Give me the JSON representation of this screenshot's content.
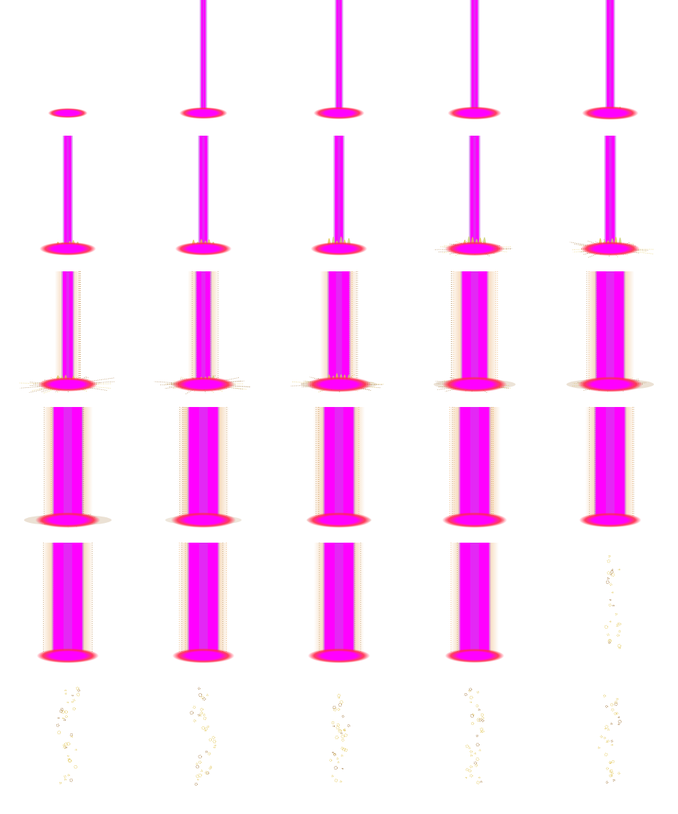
{
  "sprite_sheet": {
    "columns": 5,
    "rows": 6,
    "frame_count": 30,
    "colors": {
      "beam_core": "#ff00ff",
      "beam_edge": "#c058e8",
      "pool_center": "#ff00ff",
      "pool_rim": "#ff2a4a",
      "sparks_gold": "#e0c24a",
      "sparks_brown": "#9a6a2a",
      "halo_orange": "#e08a2a",
      "halo_green": "#c8d070",
      "background": "#ffffff"
    },
    "frames": [
      {
        "id": 1,
        "beam": 0,
        "aura": 0,
        "flare": 0,
        "spikes": 0,
        "dust": 0,
        "pool": 0.55,
        "bubbles": 0
      },
      {
        "id": 2,
        "beam": 0.1,
        "aura": 0,
        "flare": 0,
        "spikes": 0,
        "dust": 0,
        "pool": 0.7,
        "bubbles": 0
      },
      {
        "id": 3,
        "beam": 0.12,
        "aura": 0,
        "flare": 0,
        "spikes": 0,
        "dust": 0,
        "pool": 0.75,
        "bubbles": 0
      },
      {
        "id": 4,
        "beam": 0.14,
        "aura": 0,
        "flare": 0.05,
        "spikes": 0,
        "dust": 0,
        "pool": 0.8,
        "bubbles": 0
      },
      {
        "id": 5,
        "beam": 0.15,
        "aura": 0,
        "flare": 0.4,
        "spikes": 0,
        "dust": 0,
        "pool": 0.85,
        "bubbles": 0
      },
      {
        "id": 6,
        "beam": 0.16,
        "aura": 0,
        "flare": 0.55,
        "spikes": 0,
        "dust": 0,
        "pool": 0.85,
        "bubbles": 0
      },
      {
        "id": 7,
        "beam": 0.17,
        "aura": 0,
        "flare": 0.7,
        "spikes": 0,
        "dust": 0,
        "pool": 0.85,
        "bubbles": 0
      },
      {
        "id": 8,
        "beam": 0.18,
        "aura": 0,
        "flare": 0.8,
        "spikes": 0,
        "dust": 0,
        "pool": 0.85,
        "bubbles": 0
      },
      {
        "id": 9,
        "beam": 0.19,
        "aura": 0,
        "flare": 0.8,
        "spikes": 0.75,
        "dust": 0,
        "pool": 0.9,
        "bubbles": 0
      },
      {
        "id": 10,
        "beam": 0.2,
        "aura": 0,
        "flare": 0.8,
        "spikes": 0.95,
        "dust": 0,
        "pool": 0.9,
        "bubbles": 0
      },
      {
        "id": 11,
        "beam": 0.22,
        "aura": 0.15,
        "flare": 0.6,
        "spikes": 1.0,
        "dust": 0.1,
        "pool": 0.9,
        "bubbles": 0
      },
      {
        "id": 12,
        "beam": 0.3,
        "aura": 0.3,
        "flare": 0.6,
        "spikes": 0.95,
        "dust": 0.2,
        "pool": 0.95,
        "bubbles": 0
      },
      {
        "id": 13,
        "beam": 0.45,
        "aura": 0.5,
        "flare": 0.7,
        "spikes": 0.9,
        "dust": 0.3,
        "pool": 1.0,
        "bubbles": 0
      },
      {
        "id": 14,
        "beam": 0.55,
        "aura": 0.75,
        "flare": 0.4,
        "spikes": 0.8,
        "dust": 0.35,
        "pool": 1.0,
        "bubbles": 0
      },
      {
        "id": 15,
        "beam": 0.6,
        "aura": 0.8,
        "flare": 0.3,
        "spikes": 0.7,
        "dust": 0.4,
        "pool": 1.0,
        "bubbles": 0
      },
      {
        "id": 16,
        "beam": 0.62,
        "aura": 0.85,
        "flare": 0.2,
        "spikes": 0.6,
        "dust": 0.4,
        "pool": 1.0,
        "bubbles": 0
      },
      {
        "id": 17,
        "beam": 0.64,
        "aura": 0.9,
        "flare": 0.15,
        "spikes": 0.45,
        "dust": 0.3,
        "pool": 1.0,
        "bubbles": 0
      },
      {
        "id": 18,
        "beam": 0.64,
        "aura": 0.9,
        "flare": 0.1,
        "spikes": 0.35,
        "dust": 0.2,
        "pool": 1.0,
        "bubbles": 0
      },
      {
        "id": 19,
        "beam": 0.64,
        "aura": 0.9,
        "flare": 0.05,
        "spikes": 0.2,
        "dust": 0.15,
        "pool": 1.0,
        "bubbles": 0
      },
      {
        "id": 20,
        "beam": 0.64,
        "aura": 0.85,
        "flare": 0,
        "spikes": 0.1,
        "dust": 0.1,
        "pool": 0.95,
        "bubbles": 0
      },
      {
        "id": 21,
        "beam": 0.64,
        "aura": 0.9,
        "flare": 0,
        "spikes": 0,
        "dust": 0.05,
        "pool": 0.95,
        "bubbles": 0
      },
      {
        "id": 22,
        "beam": 0.64,
        "aura": 0.85,
        "flare": 0,
        "spikes": 0,
        "dust": 0,
        "pool": 0.95,
        "bubbles": 0
      },
      {
        "id": 23,
        "beam": 0.64,
        "aura": 0.85,
        "flare": 0,
        "spikes": 0,
        "dust": 0,
        "pool": 0.95,
        "bubbles": 0
      },
      {
        "id": 24,
        "beam": 0.64,
        "aura": 0.8,
        "flare": 0,
        "spikes": 0,
        "dust": 0,
        "pool": 0.9,
        "bubbles": 0
      },
      {
        "id": 25,
        "beam": 0,
        "aura": 0,
        "flare": 0,
        "spikes": 0,
        "dust": 0,
        "pool": 0,
        "bubbles": 0.6
      },
      {
        "id": 26,
        "beam": 0,
        "aura": 0,
        "flare": 0,
        "spikes": 0,
        "dust": 0,
        "pool": 0,
        "bubbles": 0.8
      },
      {
        "id": 27,
        "beam": 0,
        "aura": 0,
        "flare": 0,
        "spikes": 0,
        "dust": 0,
        "pool": 0,
        "bubbles": 0.8
      },
      {
        "id": 28,
        "beam": 0,
        "aura": 0,
        "flare": 0,
        "spikes": 0,
        "dust": 0,
        "pool": 0,
        "bubbles": 0.8
      },
      {
        "id": 29,
        "beam": 0,
        "aura": 0,
        "flare": 0,
        "spikes": 0,
        "dust": 0,
        "pool": 0,
        "bubbles": 0.8
      },
      {
        "id": 30,
        "beam": 0,
        "aura": 0,
        "flare": 0,
        "spikes": 0,
        "dust": 0,
        "pool": 0,
        "bubbles": 0.75
      }
    ]
  }
}
